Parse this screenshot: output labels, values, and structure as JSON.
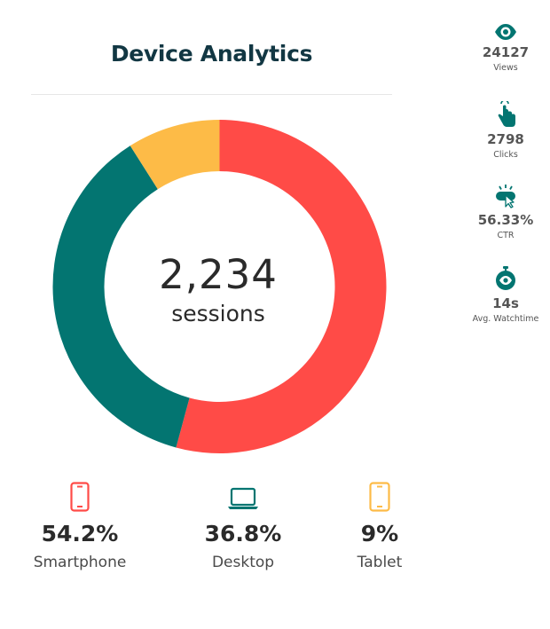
{
  "title": "Device Analytics",
  "center": {
    "value": "2,234",
    "label": "sessions"
  },
  "metrics": [
    {
      "icon": "eye-icon",
      "value": "24127",
      "label": "Views"
    },
    {
      "icon": "tap-hand-icon",
      "value": "2798",
      "label": "Clicks"
    },
    {
      "icon": "click-cursor-icon",
      "value": "56.33%",
      "label": "CTR"
    },
    {
      "icon": "stopwatch-icon",
      "value": "14s",
      "label": "Avg. Watchtime"
    }
  ],
  "devices": [
    {
      "icon": "smartphone-icon",
      "percent": "54.2%",
      "name": "Smartphone",
      "color": "#ff4b47"
    },
    {
      "icon": "laptop-icon",
      "percent": "36.8%",
      "name": "Desktop",
      "color": "#037571"
    },
    {
      "icon": "tablet-icon",
      "percent": "9%",
      "name": "Tablet",
      "color": "#fdbb47"
    }
  ],
  "colors": {
    "accent": "#037571",
    "title": "#123743"
  },
  "chart_data": {
    "type": "pie",
    "variant": "donut",
    "title": "Device Analytics",
    "categories": [
      "Smartphone",
      "Desktop",
      "Tablet"
    ],
    "values": [
      54.2,
      36.8,
      9
    ],
    "colors": [
      "#ff4b47",
      "#037571",
      "#fdbb47"
    ],
    "total": 2234,
    "total_label": "sessions"
  }
}
